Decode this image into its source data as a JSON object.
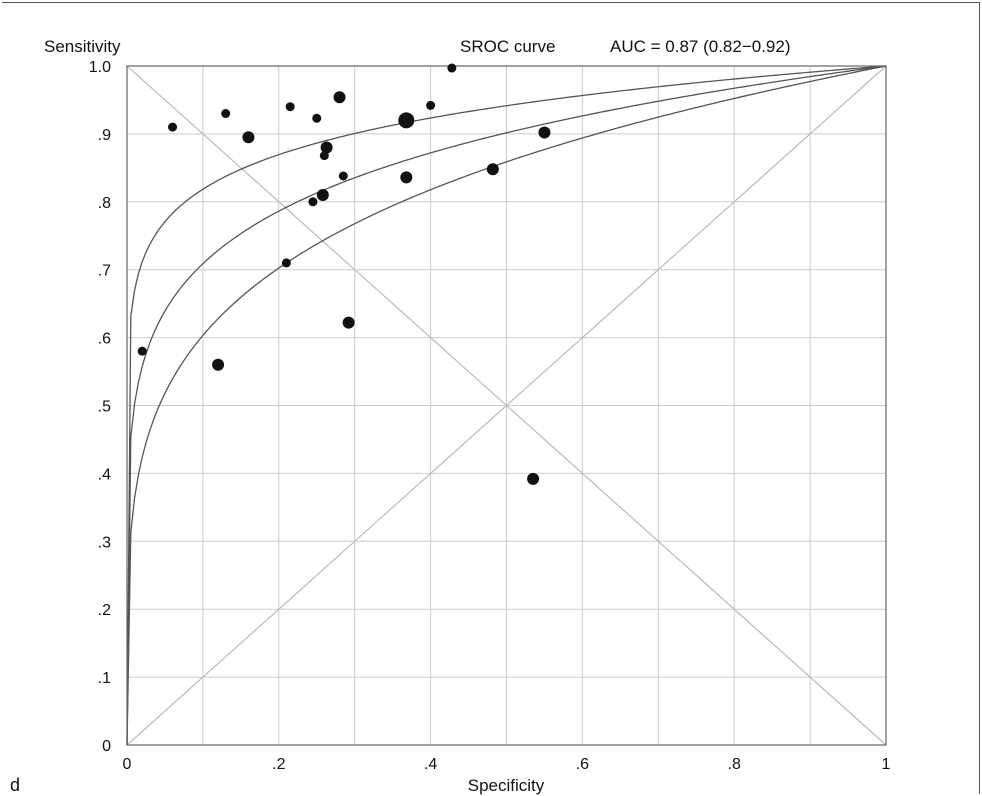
{
  "panel_label": "d",
  "chart_data": {
    "type": "scatter",
    "title": "",
    "legend_text": "SROC curve",
    "auc_text": "AUC = 0.87 (0.82−0.92)",
    "xlabel": "Specificity",
    "ylabel": "Sensitivity",
    "xlim": [
      0,
      1
    ],
    "ylim": [
      0,
      1
    ],
    "x_ticks": [
      {
        "value": 0,
        "label": "0"
      },
      {
        "value": 0.2,
        "label": ".2"
      },
      {
        "value": 0.4,
        "label": ".4"
      },
      {
        "value": 0.6,
        "label": ".6"
      },
      {
        "value": 0.8,
        "label": ".8"
      },
      {
        "value": 1,
        "label": "1"
      }
    ],
    "y_ticks": [
      {
        "value": 0,
        "label": "0"
      },
      {
        "value": 0.1,
        "label": ".1"
      },
      {
        "value": 0.2,
        "label": ".2"
      },
      {
        "value": 0.3,
        "label": ".3"
      },
      {
        "value": 0.4,
        "label": ".4"
      },
      {
        "value": 0.5,
        "label": ".5"
      },
      {
        "value": 0.6,
        "label": ".6"
      },
      {
        "value": 0.7,
        "label": ".7"
      },
      {
        "value": 0.8,
        "label": ".8"
      },
      {
        "value": 0.9,
        "label": ".9"
      },
      {
        "value": 1,
        "label": "1.0"
      }
    ],
    "grid": true,
    "reference_lines": [
      "diagonal",
      "anti-diagonal"
    ],
    "sroc_curves": [
      {
        "role": "upper",
        "auc": 0.92
      },
      {
        "role": "estimate",
        "auc": 0.87
      },
      {
        "role": "lower",
        "auc": 0.82
      }
    ],
    "points": [
      {
        "x": 0.02,
        "y": 0.58,
        "weight": 1
      },
      {
        "x": 0.06,
        "y": 0.91,
        "weight": 1
      },
      {
        "x": 0.12,
        "y": 0.56,
        "weight": 2
      },
      {
        "x": 0.13,
        "y": 0.93,
        "weight": 1
      },
      {
        "x": 0.16,
        "y": 0.895,
        "weight": 2
      },
      {
        "x": 0.21,
        "y": 0.71,
        "weight": 1
      },
      {
        "x": 0.215,
        "y": 0.94,
        "weight": 1
      },
      {
        "x": 0.245,
        "y": 0.8,
        "weight": 1
      },
      {
        "x": 0.25,
        "y": 0.923,
        "weight": 1
      },
      {
        "x": 0.258,
        "y": 0.81,
        "weight": 2
      },
      {
        "x": 0.26,
        "y": 0.868,
        "weight": 1
      },
      {
        "x": 0.263,
        "y": 0.88,
        "weight": 2
      },
      {
        "x": 0.28,
        "y": 0.954,
        "weight": 2
      },
      {
        "x": 0.285,
        "y": 0.838,
        "weight": 1
      },
      {
        "x": 0.292,
        "y": 0.622,
        "weight": 2
      },
      {
        "x": 0.368,
        "y": 0.92,
        "weight": 3
      },
      {
        "x": 0.368,
        "y": 0.836,
        "weight": 2
      },
      {
        "x": 0.4,
        "y": 0.942,
        "weight": 1
      },
      {
        "x": 0.428,
        "y": 0.997,
        "weight": 1
      },
      {
        "x": 0.482,
        "y": 0.848,
        "weight": 2
      },
      {
        "x": 0.535,
        "y": 0.392,
        "weight": 2
      },
      {
        "x": 0.55,
        "y": 0.902,
        "weight": 2
      }
    ],
    "colors": {
      "points": "#111111",
      "curves": "#555555",
      "grid": "#cccccc",
      "reference": "#bbbbbb",
      "axes": "#666666",
      "text": "#111111"
    }
  }
}
